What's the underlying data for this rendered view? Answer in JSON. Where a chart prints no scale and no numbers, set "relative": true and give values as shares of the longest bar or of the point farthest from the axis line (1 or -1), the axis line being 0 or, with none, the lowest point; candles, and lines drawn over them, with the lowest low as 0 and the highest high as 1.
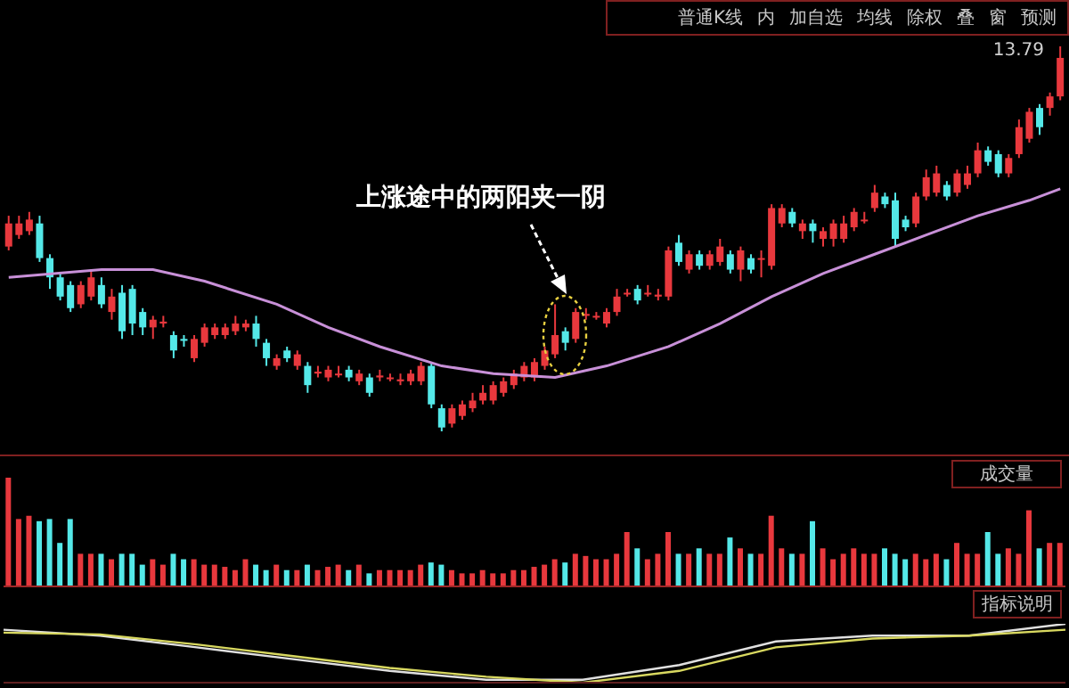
{
  "chart_data": [
    {
      "type": "candlestick",
      "relative": true,
      "categories": [
        null,
        null,
        null,
        null,
        null,
        null,
        null,
        null,
        null,
        null,
        null,
        null,
        null,
        null,
        null,
        null,
        null,
        null,
        null,
        null,
        null,
        null,
        null,
        null,
        null,
        null,
        null,
        null,
        null,
        null,
        null,
        null,
        null,
        null,
        null,
        null,
        null,
        null,
        null,
        null,
        null,
        null,
        null,
        null,
        null,
        null,
        null,
        null,
        null,
        null,
        null,
        null,
        null,
        null,
        null,
        null,
        null,
        null,
        null,
        null,
        null,
        null,
        null,
        null,
        null,
        null,
        null,
        null,
        null,
        null,
        null,
        null,
        null,
        null,
        null,
        null,
        null,
        null,
        null,
        null,
        null,
        null,
        null,
        null,
        null,
        null,
        null,
        null,
        null,
        null,
        null,
        null,
        null,
        null,
        null,
        null,
        null,
        null,
        null,
        null,
        null,
        null,
        null
      ],
      "ohlc": [
        [
          0.48,
          0.56,
          0.47,
          0.54
        ],
        [
          0.51,
          0.56,
          0.5,
          0.54
        ],
        [
          0.52,
          0.57,
          0.51,
          0.55
        ],
        [
          0.54,
          0.56,
          0.44,
          0.45
        ],
        [
          0.45,
          0.46,
          0.37,
          0.4
        ],
        [
          0.4,
          0.41,
          0.34,
          0.35
        ],
        [
          0.38,
          0.39,
          0.31,
          0.32
        ],
        [
          0.33,
          0.39,
          0.32,
          0.38
        ],
        [
          0.35,
          0.42,
          0.34,
          0.4
        ],
        [
          0.38,
          0.4,
          0.32,
          0.33
        ],
        [
          0.31,
          0.37,
          0.29,
          0.35
        ],
        [
          0.36,
          0.38,
          0.24,
          0.26
        ],
        [
          0.37,
          0.38,
          0.25,
          0.28
        ],
        [
          0.31,
          0.32,
          0.25,
          0.27
        ],
        [
          0.27,
          0.3,
          0.24,
          0.29
        ],
        [
          0.28,
          0.3,
          0.27,
          0.285
        ],
        [
          0.25,
          0.26,
          0.19,
          0.21
        ],
        [
          0.24,
          0.25,
          0.22,
          0.235
        ],
        [
          0.19,
          0.25,
          0.18,
          0.24
        ],
        [
          0.23,
          0.28,
          0.22,
          0.27
        ],
        [
          0.25,
          0.28,
          0.24,
          0.27
        ],
        [
          0.25,
          0.28,
          0.24,
          0.27
        ],
        [
          0.26,
          0.3,
          0.25,
          0.28
        ],
        [
          0.27,
          0.29,
          0.26,
          0.28
        ],
        [
          0.28,
          0.3,
          0.22,
          0.24
        ],
        [
          0.23,
          0.24,
          0.17,
          0.19
        ],
        [
          0.17,
          0.2,
          0.16,
          0.19
        ],
        [
          0.21,
          0.22,
          0.18,
          0.19
        ],
        [
          0.17,
          0.21,
          0.16,
          0.2
        ],
        [
          0.17,
          0.18,
          0.1,
          0.12
        ],
        [
          0.15,
          0.17,
          0.14,
          0.155
        ],
        [
          0.14,
          0.17,
          0.13,
          0.16
        ],
        [
          0.15,
          0.17,
          0.14,
          0.15
        ],
        [
          0.16,
          0.17,
          0.13,
          0.14
        ],
        [
          0.13,
          0.16,
          0.12,
          0.15
        ],
        [
          0.14,
          0.15,
          0.09,
          0.1
        ],
        [
          0.14,
          0.16,
          0.13,
          0.145
        ],
        [
          0.14,
          0.15,
          0.13,
          0.14
        ],
        [
          0.13,
          0.15,
          0.12,
          0.135
        ],
        [
          0.13,
          0.16,
          0.12,
          0.15
        ],
        [
          0.13,
          0.18,
          0.12,
          0.17
        ],
        [
          0.17,
          0.18,
          0.06,
          0.07
        ],
        [
          0.06,
          0.07,
          0.0,
          0.01
        ],
        [
          0.02,
          0.07,
          0.01,
          0.06
        ],
        [
          0.04,
          0.08,
          0.03,
          0.07
        ],
        [
          0.06,
          0.1,
          0.05,
          0.08
        ],
        [
          0.08,
          0.12,
          0.07,
          0.1
        ],
        [
          0.08,
          0.13,
          0.07,
          0.12
        ],
        [
          0.1,
          0.14,
          0.09,
          0.13
        ],
        [
          0.12,
          0.16,
          0.11,
          0.15
        ],
        [
          0.14,
          0.18,
          0.13,
          0.17
        ],
        [
          0.14,
          0.19,
          0.13,
          0.18
        ],
        [
          0.17,
          0.22,
          0.16,
          0.21
        ],
        [
          0.2,
          0.33,
          0.19,
          0.25
        ],
        [
          0.26,
          0.27,
          0.21,
          0.23
        ],
        [
          0.24,
          0.32,
          0.23,
          0.31
        ],
        [
          0.3,
          0.32,
          0.29,
          0.305
        ],
        [
          0.3,
          0.31,
          0.29,
          0.3
        ],
        [
          0.28,
          0.32,
          0.27,
          0.31
        ],
        [
          0.31,
          0.37,
          0.3,
          0.35
        ],
        [
          0.36,
          0.37,
          0.35,
          0.36
        ],
        [
          0.37,
          0.38,
          0.33,
          0.34
        ],
        [
          0.36,
          0.38,
          0.35,
          0.36
        ],
        [
          0.35,
          0.37,
          0.34,
          0.355
        ],
        [
          0.35,
          0.48,
          0.34,
          0.47
        ],
        [
          0.49,
          0.51,
          0.43,
          0.44
        ],
        [
          0.42,
          0.47,
          0.41,
          0.46
        ],
        [
          0.46,
          0.47,
          0.42,
          0.43
        ],
        [
          0.43,
          0.47,
          0.42,
          0.46
        ],
        [
          0.44,
          0.5,
          0.43,
          0.48
        ],
        [
          0.46,
          0.47,
          0.41,
          0.42
        ],
        [
          0.42,
          0.48,
          0.39,
          0.47
        ],
        [
          0.45,
          0.46,
          0.41,
          0.42
        ],
        [
          0.45,
          0.47,
          0.4,
          0.45
        ],
        [
          0.43,
          0.59,
          0.42,
          0.58
        ],
        [
          0.54,
          0.59,
          0.53,
          0.58
        ],
        [
          0.57,
          0.58,
          0.53,
          0.54
        ],
        [
          0.52,
          0.55,
          0.5,
          0.54
        ],
        [
          0.54,
          0.55,
          0.49,
          0.52
        ],
        [
          0.5,
          0.53,
          0.48,
          0.52
        ],
        [
          0.5,
          0.55,
          0.48,
          0.54
        ],
        [
          0.5,
          0.56,
          0.49,
          0.54
        ],
        [
          0.53,
          0.58,
          0.52,
          0.57
        ],
        [
          0.55,
          0.57,
          0.54,
          0.55
        ],
        [
          0.58,
          0.64,
          0.57,
          0.62
        ],
        [
          0.61,
          0.62,
          0.58,
          0.59
        ],
        [
          0.6,
          0.62,
          0.48,
          0.5
        ],
        [
          0.55,
          0.56,
          0.52,
          0.53
        ],
        [
          0.54,
          0.62,
          0.53,
          0.61
        ],
        [
          0.61,
          0.68,
          0.6,
          0.66
        ],
        [
          0.62,
          0.69,
          0.61,
          0.67
        ],
        [
          0.64,
          0.65,
          0.6,
          0.61
        ],
        [
          0.62,
          0.68,
          0.61,
          0.67
        ],
        [
          0.64,
          0.69,
          0.63,
          0.67
        ],
        [
          0.67,
          0.75,
          0.66,
          0.73
        ],
        [
          0.73,
          0.74,
          0.69,
          0.7
        ],
        [
          0.72,
          0.73,
          0.66,
          0.67
        ],
        [
          0.67,
          0.72,
          0.66,
          0.71
        ],
        [
          0.72,
          0.81,
          0.71,
          0.79
        ],
        [
          0.76,
          0.84,
          0.75,
          0.83
        ],
        [
          0.84,
          0.85,
          0.77,
          0.79
        ],
        [
          0.84,
          0.88,
          0.82,
          0.87
        ],
        [
          0.87,
          1.0,
          0.86,
          0.97
        ]
      ],
      "colors": [
        "#e8383d",
        "#e8383d",
        "#e8383d",
        "#54e8e8",
        "#54e8e8",
        "#54e8e8",
        "#54e8e8",
        "#e8383d",
        "#e8383d",
        "#54e8e8",
        "#e8383d",
        "#54e8e8",
        "#54e8e8",
        "#54e8e8",
        "#e8383d",
        "#e8383d",
        "#54e8e8",
        "#54e8e8",
        "#e8383d",
        "#e8383d",
        "#e8383d",
        "#e8383d",
        "#e8383d",
        "#e8383d",
        "#54e8e8",
        "#54e8e8",
        "#e8383d",
        "#54e8e8",
        "#e8383d",
        "#54e8e8",
        "#e8383d",
        "#e8383d",
        "#e8383d",
        "#54e8e8",
        "#e8383d",
        "#54e8e8",
        "#e8383d",
        "#e8383d",
        "#e8383d",
        "#e8383d",
        "#e8383d",
        "#54e8e8",
        "#54e8e8",
        "#e8383d",
        "#e8383d",
        "#e8383d",
        "#e8383d",
        "#e8383d",
        "#e8383d",
        "#e8383d",
        "#e8383d",
        "#e8383d",
        "#e8383d",
        "#e8383d",
        "#54e8e8",
        "#e8383d",
        "#e8383d",
        "#e8383d",
        "#e8383d",
        "#e8383d",
        "#e8383d",
        "#54e8e8",
        "#e8383d",
        "#e8383d",
        "#e8383d",
        "#54e8e8",
        "#e8383d",
        "#54e8e8",
        "#e8383d",
        "#e8383d",
        "#54e8e8",
        "#e8383d",
        "#54e8e8",
        "#e8383d",
        "#e8383d",
        "#e8383d",
        "#54e8e8",
        "#e8383d",
        "#54e8e8",
        "#e8383d",
        "#e8383d",
        "#e8383d",
        "#e8383d",
        "#e8383d",
        "#e8383d",
        "#54e8e8",
        "#54e8e8",
        "#54e8e8",
        "#e8383d",
        "#e8383d",
        "#e8383d",
        "#54e8e8",
        "#e8383d",
        "#e8383d",
        "#e8383d",
        "#54e8e8",
        "#54e8e8",
        "#e8383d",
        "#e8383d",
        "#e8383d",
        "#54e8e8",
        "#e8383d",
        "#e8383d"
      ],
      "series": [
        {
          "type": "line",
          "color": "#c890d8",
          "values": [
            0.4,
            null,
            null,
            null,
            null,
            null,
            null,
            null,
            null,
            0.42,
            null,
            null,
            null,
            null,
            0.42,
            null,
            null,
            null,
            null,
            0.39,
            null,
            null,
            null,
            null,
            null,
            null,
            0.33,
            null,
            null,
            null,
            null,
            0.27,
            null,
            null,
            null,
            null,
            0.22,
            null,
            null,
            null,
            null,
            null,
            0.17,
            null,
            null,
            null,
            null,
            0.15,
            null,
            null,
            null,
            null,
            null,
            0.14,
            null,
            null,
            null,
            null,
            0.17,
            null,
            null,
            null,
            null,
            null,
            0.22,
            null,
            null,
            null,
            null,
            0.28,
            null,
            null,
            null,
            null,
            0.35,
            null,
            null,
            null,
            null,
            0.41,
            null,
            null,
            null,
            null,
            0.46,
            null,
            null,
            null,
            null,
            0.51,
            null,
            null,
            null,
            null,
            0.56,
            null,
            null,
            null,
            null,
            0.6,
            null,
            null,
            0.63
          ]
        }
      ],
      "annotations": [
        "上涨途中的两阳夹一阴",
        "13.79",
        "普通K线",
        "内",
        "加自选",
        "均线",
        "除权",
        "叠",
        "窗",
        "预测"
      ]
    },
    {
      "type": "bar",
      "relative": true,
      "title": "成交量",
      "categories": [
        null,
        null,
        null,
        null,
        null,
        null,
        null,
        null,
        null,
        null,
        null,
        null,
        null,
        null,
        null,
        null,
        null,
        null,
        null,
        null,
        null,
        null,
        null,
        null,
        null,
        null,
        null,
        null,
        null,
        null,
        null,
        null,
        null,
        null,
        null,
        null,
        null,
        null,
        null,
        null,
        null,
        null,
        null,
        null,
        null,
        null,
        null,
        null,
        null,
        null,
        null,
        null,
        null,
        null,
        null,
        null,
        null,
        null,
        null,
        null,
        null,
        null,
        null,
        null,
        null,
        null,
        null,
        null,
        null,
        null,
        null,
        null,
        null,
        null,
        null,
        null,
        null,
        null,
        null,
        null,
        null,
        null,
        null,
        null,
        null,
        null,
        null,
        null,
        null,
        null,
        null,
        null,
        null,
        null,
        null,
        null,
        null,
        null,
        null,
        null,
        null,
        null,
        null
      ],
      "values": [
        1.0,
        0.62,
        0.65,
        0.6,
        0.62,
        0.4,
        0.62,
        0.3,
        0.3,
        0.3,
        0.25,
        0.3,
        0.3,
        0.2,
        0.25,
        0.2,
        0.3,
        0.25,
        0.25,
        0.2,
        0.2,
        0.18,
        0.15,
        0.25,
        0.2,
        0.15,
        0.2,
        0.15,
        0.15,
        0.2,
        0.15,
        0.18,
        0.2,
        0.15,
        0.2,
        0.12,
        0.15,
        0.15,
        0.15,
        0.15,
        0.2,
        0.22,
        0.2,
        0.15,
        0.12,
        0.12,
        0.15,
        0.12,
        0.12,
        0.15,
        0.15,
        0.18,
        0.2,
        0.25,
        0.22,
        0.3,
        0.28,
        0.25,
        0.25,
        0.3,
        0.5,
        0.35,
        0.25,
        0.3,
        0.5,
        0.3,
        0.3,
        0.35,
        0.3,
        0.3,
        0.45,
        0.35,
        0.3,
        0.3,
        0.65,
        0.35,
        0.3,
        0.3,
        0.6,
        0.35,
        0.25,
        0.3,
        0.35,
        0.3,
        0.3,
        0.35,
        0.3,
        0.25,
        0.3,
        0.25,
        0.3,
        0.25,
        0.4,
        0.3,
        0.3,
        0.5,
        0.3,
        0.35,
        0.3,
        0.7,
        0.35,
        0.4,
        0.4
      ],
      "colors": [
        "#e8383d",
        "#e8383d",
        "#e8383d",
        "#54e8e8",
        "#54e8e8",
        "#54e8e8",
        "#54e8e8",
        "#e8383d",
        "#e8383d",
        "#54e8e8",
        "#e8383d",
        "#54e8e8",
        "#54e8e8",
        "#54e8e8",
        "#e8383d",
        "#e8383d",
        "#54e8e8",
        "#54e8e8",
        "#e8383d",
        "#e8383d",
        "#e8383d",
        "#e8383d",
        "#e8383d",
        "#e8383d",
        "#54e8e8",
        "#54e8e8",
        "#e8383d",
        "#54e8e8",
        "#e8383d",
        "#54e8e8",
        "#e8383d",
        "#e8383d",
        "#e8383d",
        "#54e8e8",
        "#e8383d",
        "#54e8e8",
        "#e8383d",
        "#e8383d",
        "#e8383d",
        "#e8383d",
        "#e8383d",
        "#54e8e8",
        "#54e8e8",
        "#e8383d",
        "#e8383d",
        "#e8383d",
        "#e8383d",
        "#e8383d",
        "#e8383d",
        "#e8383d",
        "#e8383d",
        "#e8383d",
        "#e8383d",
        "#e8383d",
        "#54e8e8",
        "#e8383d",
        "#e8383d",
        "#e8383d",
        "#e8383d",
        "#e8383d",
        "#e8383d",
        "#54e8e8",
        "#e8383d",
        "#e8383d",
        "#e8383d",
        "#54e8e8",
        "#e8383d",
        "#54e8e8",
        "#e8383d",
        "#e8383d",
        "#54e8e8",
        "#e8383d",
        "#54e8e8",
        "#e8383d",
        "#e8383d",
        "#e8383d",
        "#54e8e8",
        "#e8383d",
        "#54e8e8",
        "#e8383d",
        "#e8383d",
        "#e8383d",
        "#e8383d",
        "#e8383d",
        "#e8383d",
        "#54e8e8",
        "#54e8e8",
        "#54e8e8",
        "#e8383d",
        "#e8383d",
        "#e8383d",
        "#54e8e8",
        "#e8383d",
        "#e8383d",
        "#e8383d",
        "#54e8e8",
        "#54e8e8",
        "#e8383d",
        "#e8383d",
        "#e8383d",
        "#54e8e8",
        "#e8383d",
        "#e8383d"
      ]
    },
    {
      "type": "line",
      "relative": true,
      "categories": [
        null,
        null,
        null,
        null,
        null,
        null,
        null,
        null,
        null,
        null,
        null,
        null
      ],
      "series": [
        {
          "color": "#e0e0e0",
          "values": [
            0.9,
            0.8,
            0.6,
            0.4,
            0.2,
            0.05,
            0.05,
            0.3,
            0.7,
            0.8,
            0.8,
            1.0
          ]
        },
        {
          "color": "#d8d860",
          "values": [
            0.85,
            0.82,
            0.65,
            0.45,
            0.25,
            0.1,
            0.0,
            0.2,
            0.6,
            0.75,
            0.8,
            0.9
          ]
        }
      ],
      "annotations": [
        "指标说明"
      ]
    }
  ]
}
